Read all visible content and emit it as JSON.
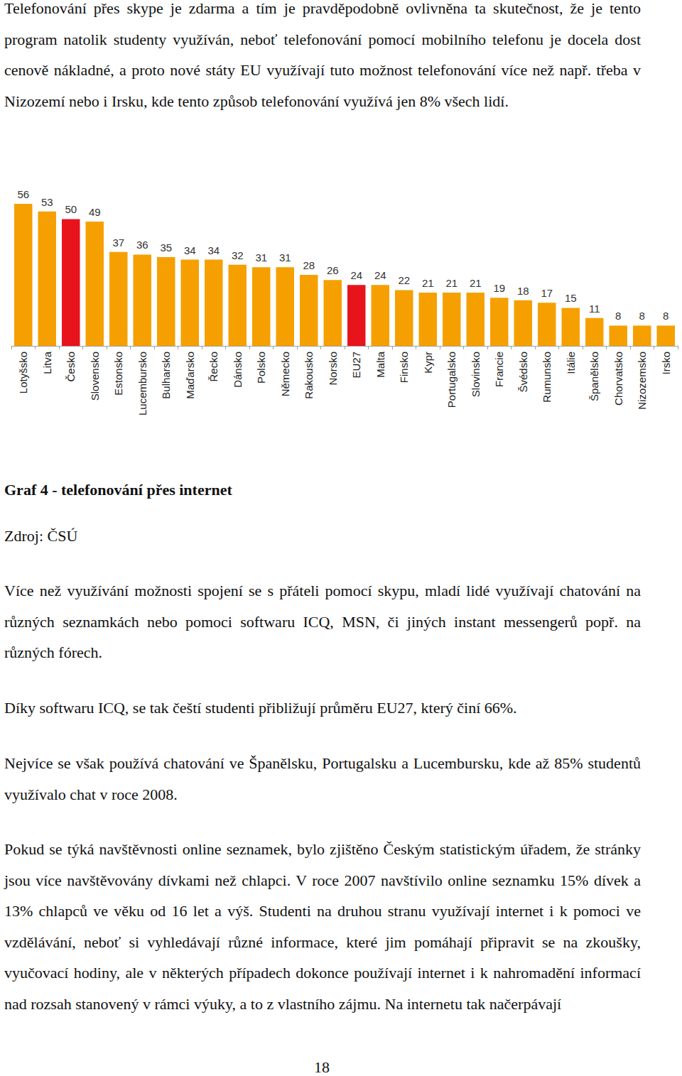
{
  "document": {
    "text_before": [
      "Telefonování přes skype je zdarma a tím je pravděpodobně ovlivněna ta skutečnost, že je tento program natolik studenty využíván, neboť telefonování pomocí mobilního telefonu je docela dost cenově nákladné, a proto nové státy EU využívají tuto možnost telefonování více než např. třeba v Nizozemí nebo i Irsku, kde tento způsob telefonování využívá jen 8% všech lidí."
    ],
    "caption": "Graf 4 - telefonování přes internet",
    "source": "Zdroj: ČSÚ",
    "text_after": [
      "Více než využívání možnosti spojení se s přáteli pomocí skypu, mladí lidé využívají chatování na různých seznamkách nebo pomoci softwaru ICQ, MSN, či jiných instant messengerů popř. na různých fórech.",
      "Díky softwaru ICQ, se tak čeští studenti přibližují průměru EU27, který činí 66%.",
      "Nejvíce se však používá chatování ve Španělsku, Portugalsku a Lucembursku, kde až 85% studentů využívalo chat v roce 2008.",
      "Pokud se týká navštěvnosti online seznamek, bylo zjištěno Českým statistickým úřadem, že stránky jsou více navštěvovány dívkami než chlapci. V roce 2007 navštívilo online seznamku 15% dívek a 13% chlapců ve věku od 16 let a výš. Studenti na druhou stranu využívají internet i k pomoci ve vzdělávání, neboť si vyhledávají různé informace, které jim pomáhají připravit se na zkoušky, vyučovací hodiny, ale v některých případech dokonce používají internet i k nahromadění informací nad rozsah stanovený v rámci výuky, a to z vlastního zájmu. Na internetu tak načerpávají"
    ],
    "page_number": "18"
  },
  "chart_data": {
    "type": "bar",
    "categories": [
      "Lotyšsko",
      "Litva",
      "Česko",
      "Slovensko",
      "Estonsko",
      "Lucembursko",
      "Bulharsko",
      "Maďarsko",
      "Řecko",
      "Dánsko",
      "Polsko",
      "Německo",
      "Rakousko",
      "Norsko",
      "EU27",
      "Malta",
      "Finsko",
      "Kypr",
      "Portugalsko",
      "Slovinsko",
      "Francie",
      "Švédsko",
      "Rumunsko",
      "Itálie",
      "Španělsko",
      "Chorvatsko",
      "Nizozemsko",
      "Irsko"
    ],
    "values": [
      56,
      53,
      50,
      49,
      37,
      36,
      35,
      34,
      34,
      32,
      31,
      31,
      28,
      26,
      24,
      24,
      22,
      21,
      21,
      21,
      19,
      18,
      17,
      15,
      11,
      8,
      8,
      8
    ],
    "colors": [
      "#f5a000",
      "#f5a000",
      "#e8141b",
      "#f5a000",
      "#f5a000",
      "#f5a000",
      "#f5a000",
      "#f5a000",
      "#f5a000",
      "#f5a000",
      "#f5a000",
      "#f5a000",
      "#f5a000",
      "#f5a000",
      "#e8141b",
      "#f5a000",
      "#f5a000",
      "#f5a000",
      "#f5a000",
      "#f5a000",
      "#f5a000",
      "#f5a000",
      "#f5a000",
      "#f5a000",
      "#f5a000",
      "#f5a000",
      "#f5a000",
      "#f5a000"
    ],
    "ylim": [
      0,
      56
    ],
    "data_labels": true,
    "tick_labels": "x",
    "grid": false
  }
}
